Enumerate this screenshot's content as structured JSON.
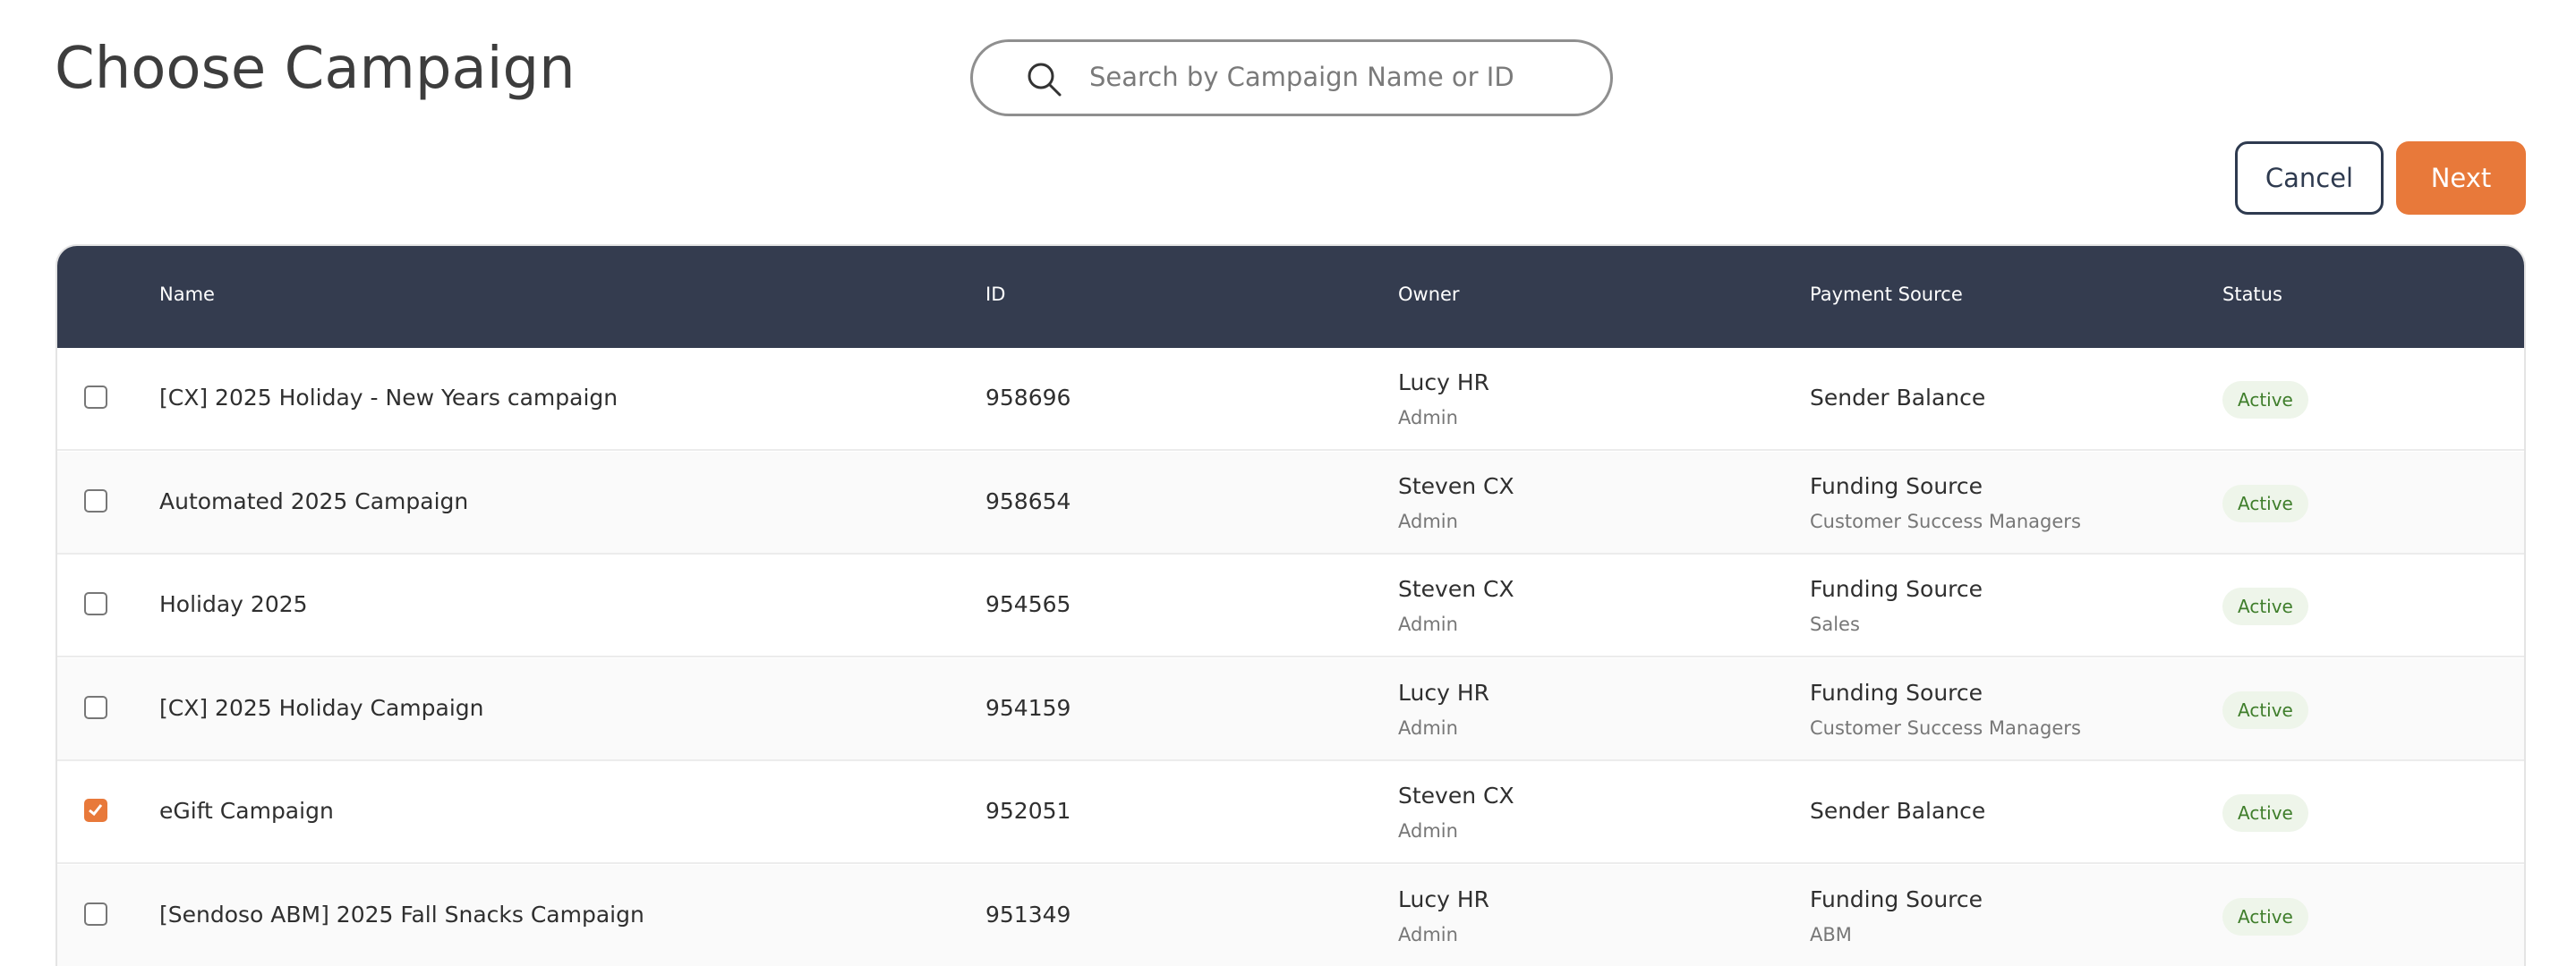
{
  "header": {
    "title": "Choose Campaign",
    "search_placeholder": "Search by Campaign Name or ID",
    "cancel": "Cancel",
    "next": "Next"
  },
  "table": {
    "columns": [
      "Name",
      "ID",
      "Owner",
      "Payment Source",
      "Status"
    ],
    "rows": [
      {
        "checked": false,
        "name": "[CX] 2025 Holiday - New Years campaign",
        "id": "958696",
        "owner": "Lucy HR",
        "role": "Admin",
        "payment": "Sender Balance",
        "payment_detail": null,
        "status": "Active"
      },
      {
        "checked": false,
        "name": "Automated 2025 Campaign",
        "id": "958654",
        "owner": "Steven CX",
        "role": "Admin",
        "payment": "Funding Source",
        "payment_detail": "Customer Success Managers",
        "status": "Active"
      },
      {
        "checked": false,
        "name": "Holiday 2025",
        "id": "954565",
        "owner": "Steven CX",
        "role": "Admin",
        "payment": "Funding Source",
        "payment_detail": "Sales",
        "status": "Active"
      },
      {
        "checked": false,
        "name": "[CX] 2025 Holiday Campaign",
        "id": "954159",
        "owner": "Lucy HR",
        "role": "Admin",
        "payment": "Funding Source",
        "payment_detail": "Customer Success Managers",
        "status": "Active"
      },
      {
        "checked": true,
        "name": "eGift Campaign",
        "id": "952051",
        "owner": "Steven CX",
        "role": "Admin",
        "payment": "Sender Balance",
        "payment_detail": null,
        "status": "Active"
      },
      {
        "checked": false,
        "name": "[Sendoso ABM] 2025 Fall Snacks Campaign",
        "id": "951349",
        "owner": "Lucy HR",
        "role": "Admin",
        "payment": "Funding Source",
        "payment_detail": "ABM",
        "status": "Active"
      }
    ]
  }
}
